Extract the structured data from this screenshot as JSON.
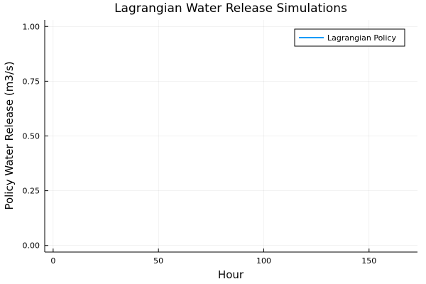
{
  "chart_data": {
    "type": "line",
    "title": "Lagrangian Water Release Simulations",
    "xlabel": "Hour",
    "ylabel": "Policy Water Release (m3/s)",
    "xlim": [
      -4,
      173
    ],
    "ylim": [
      -0.03,
      1.03
    ],
    "xticks": [
      0,
      50,
      100,
      150
    ],
    "xtick_labels": [
      "0",
      "50",
      "100",
      "150"
    ],
    "yticks": [
      0,
      0.25,
      0.5,
      0.75,
      1.0
    ],
    "ytick_labels": [
      "0.00",
      "0.25",
      "0.50",
      "0.75",
      "1.00"
    ],
    "grid": true,
    "legend_position": "top-right",
    "series": [
      {
        "name": "Lagrangian Policy",
        "color": "#009af9",
        "x": [],
        "y": []
      }
    ]
  }
}
